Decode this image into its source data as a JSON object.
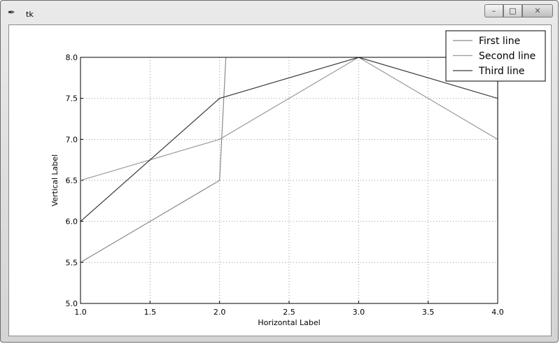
{
  "window": {
    "title": "tk",
    "app_icon": "feather-icon",
    "controls": {
      "minimize": "minimize-icon",
      "maximize": "maximize-icon",
      "close": "close-icon"
    }
  },
  "chart_data": {
    "type": "line",
    "title": "",
    "xlabel": "Horizontal Label",
    "ylabel": "Vertical Label",
    "xlim": [
      1.0,
      4.0
    ],
    "ylim": [
      5.0,
      8.0
    ],
    "xticks": [
      "1.0",
      "1.5",
      "2.0",
      "2.5",
      "3.0",
      "3.5",
      "4.0"
    ],
    "yticks": [
      "5.0",
      "5.5",
      "6.0",
      "6.5",
      "7.0",
      "7.5",
      "8.0"
    ],
    "grid": true,
    "legend_position": "top-right",
    "series": [
      {
        "name": "First line",
        "color": "#8a8a8a",
        "x": [
          1,
          2,
          2.05,
          4,
          4
        ],
        "y": [
          5.5,
          6.5,
          8.15,
          8.15,
          6.0
        ]
      },
      {
        "name": "Second line",
        "color": "#9a9a9a",
        "x": [
          1,
          2,
          3,
          4
        ],
        "y": [
          6.5,
          7.0,
          8.0,
          7.0
        ]
      },
      {
        "name": "Third line",
        "color": "#3a3a3a",
        "x": [
          1,
          2,
          3,
          4
        ],
        "y": [
          6.0,
          7.5,
          8.0,
          7.5
        ]
      }
    ]
  }
}
